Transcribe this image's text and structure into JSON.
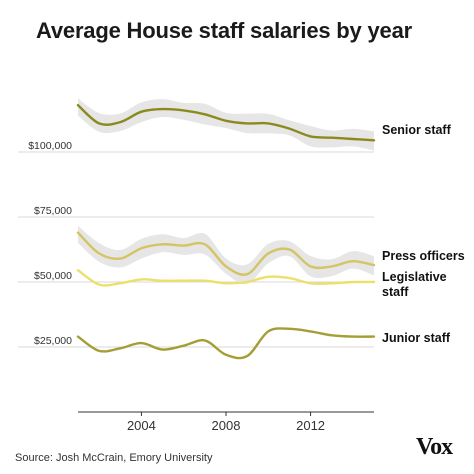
{
  "chart_data": {
    "type": "line",
    "title": "Average House staff salaries by year",
    "xlim": [
      2001,
      2015
    ],
    "ylim": [
      0,
      130000
    ],
    "x_ticks": [
      2004,
      2008,
      2012
    ],
    "x_tick_labels": [
      "2004",
      "2008",
      "2012"
    ],
    "y_ticks": [
      25000,
      50000,
      75000,
      100000
    ],
    "y_tick_labels": [
      "$25,000",
      "$50,000",
      "$75,000",
      "$100,000"
    ],
    "grid": "horizontal",
    "series": [
      {
        "name": "Senior staff",
        "color": "#8a8a1f",
        "band": true,
        "x": [
          2001,
          2002,
          2003,
          2004,
          2005,
          2006,
          2007,
          2008,
          2009,
          2010,
          2011,
          2012,
          2013,
          2014,
          2015
        ],
        "y": [
          118000,
          111000,
          111500,
          115500,
          116500,
          116000,
          114500,
          112000,
          111000,
          111000,
          109000,
          106000,
          105500,
          105000,
          104500
        ]
      },
      {
        "name": "Press officers",
        "color": "#d4c464",
        "band": true,
        "x": [
          2001,
          2002,
          2003,
          2004,
          2005,
          2006,
          2007,
          2008,
          2009,
          2010,
          2011,
          2012,
          2013,
          2014,
          2015
        ],
        "y": [
          69000,
          61000,
          59000,
          63000,
          64500,
          64000,
          64500,
          56000,
          53000,
          61000,
          62500,
          56000,
          56000,
          58000,
          56500
        ]
      },
      {
        "name": "Legislative staff",
        "color": "#ece06a",
        "band": false,
        "x": [
          2001,
          2002,
          2003,
          2004,
          2005,
          2006,
          2007,
          2008,
          2009,
          2010,
          2011,
          2012,
          2013,
          2014,
          2015
        ],
        "y": [
          54500,
          49000,
          49500,
          51000,
          50500,
          50500,
          50500,
          49500,
          50000,
          52000,
          51500,
          49500,
          49500,
          50000,
          50000
        ]
      },
      {
        "name": "Junior staff",
        "color": "#a49e34",
        "band": false,
        "x": [
          2001,
          2002,
          2003,
          2004,
          2005,
          2006,
          2007,
          2008,
          2009,
          2010,
          2011,
          2012,
          2013,
          2014,
          2015
        ],
        "y": [
          29000,
          23500,
          24500,
          26500,
          24000,
          25500,
          27500,
          22000,
          21500,
          31000,
          32000,
          31000,
          29500,
          29000,
          29000
        ]
      }
    ],
    "series_labels": [
      "Senior staff",
      "Press officers",
      "Legislative",
      "staff",
      "Junior staff"
    ]
  },
  "source": "Source: Josh McCrain, Emory University",
  "logo": "Vox"
}
